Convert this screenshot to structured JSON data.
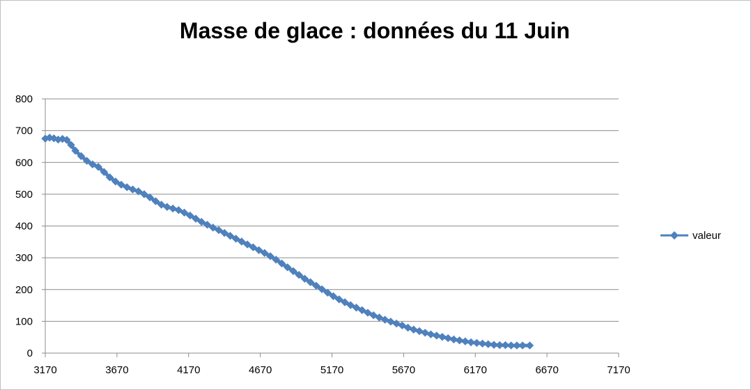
{
  "chart_data": {
    "type": "scatter",
    "title": "Masse de glace : données du 11 Juin",
    "xlabel": "",
    "ylabel": "",
    "xlim": [
      3170,
      7170
    ],
    "ylim": [
      0,
      800
    ],
    "x_ticks": [
      "3170",
      "3670",
      "4170",
      "4670",
      "5170",
      "5670",
      "6170",
      "6670",
      "7170"
    ],
    "y_ticks": [
      "0",
      "100",
      "200",
      "300",
      "400",
      "500",
      "600",
      "700",
      "800"
    ],
    "grid": "horizontal",
    "legend_position": "right",
    "series": [
      {
        "name": "valeur",
        "color": "#4f81bd",
        "marker": "diamond",
        "points": [
          [
            3170,
            675
          ],
          [
            3200,
            678
          ],
          [
            3230,
            676
          ],
          [
            3260,
            672
          ],
          [
            3290,
            674
          ],
          [
            3320,
            671
          ],
          [
            3350,
            655
          ],
          [
            3380,
            637
          ],
          [
            3420,
            620
          ],
          [
            3460,
            605
          ],
          [
            3500,
            594
          ],
          [
            3540,
            586
          ],
          [
            3580,
            570
          ],
          [
            3620,
            553
          ],
          [
            3660,
            540
          ],
          [
            3700,
            530
          ],
          [
            3740,
            522
          ],
          [
            3780,
            515
          ],
          [
            3820,
            509
          ],
          [
            3860,
            500
          ],
          [
            3900,
            490
          ],
          [
            3940,
            478
          ],
          [
            3980,
            467
          ],
          [
            4020,
            460
          ],
          [
            4060,
            455
          ],
          [
            4100,
            450
          ],
          [
            4140,
            442
          ],
          [
            4180,
            433
          ],
          [
            4220,
            423
          ],
          [
            4260,
            413
          ],
          [
            4300,
            404
          ],
          [
            4340,
            395
          ],
          [
            4380,
            387
          ],
          [
            4420,
            378
          ],
          [
            4460,
            369
          ],
          [
            4500,
            360
          ],
          [
            4540,
            351
          ],
          [
            4580,
            342
          ],
          [
            4620,
            333
          ],
          [
            4660,
            324
          ],
          [
            4700,
            315
          ],
          [
            4740,
            305
          ],
          [
            4780,
            294
          ],
          [
            4820,
            282
          ],
          [
            4860,
            270
          ],
          [
            4900,
            258
          ],
          [
            4940,
            246
          ],
          [
            4980,
            234
          ],
          [
            5020,
            223
          ],
          [
            5060,
            212
          ],
          [
            5100,
            201
          ],
          [
            5140,
            190
          ],
          [
            5180,
            179
          ],
          [
            5220,
            169
          ],
          [
            5260,
            160
          ],
          [
            5300,
            151
          ],
          [
            5340,
            143
          ],
          [
            5380,
            135
          ],
          [
            5420,
            127
          ],
          [
            5460,
            119
          ],
          [
            5500,
            112
          ],
          [
            5540,
            105
          ],
          [
            5580,
            99
          ],
          [
            5620,
            93
          ],
          [
            5660,
            87
          ],
          [
            5700,
            80
          ],
          [
            5740,
            74
          ],
          [
            5780,
            69
          ],
          [
            5820,
            64
          ],
          [
            5860,
            59
          ],
          [
            5900,
            55
          ],
          [
            5940,
            51
          ],
          [
            5980,
            47
          ],
          [
            6020,
            43
          ],
          [
            6060,
            40
          ],
          [
            6100,
            37
          ],
          [
            6140,
            34
          ],
          [
            6180,
            32
          ],
          [
            6220,
            30
          ],
          [
            6260,
            28
          ],
          [
            6300,
            26
          ],
          [
            6340,
            25
          ],
          [
            6380,
            25
          ],
          [
            6420,
            24
          ],
          [
            6460,
            24
          ],
          [
            6500,
            24
          ],
          [
            6550,
            24
          ]
        ]
      }
    ]
  }
}
